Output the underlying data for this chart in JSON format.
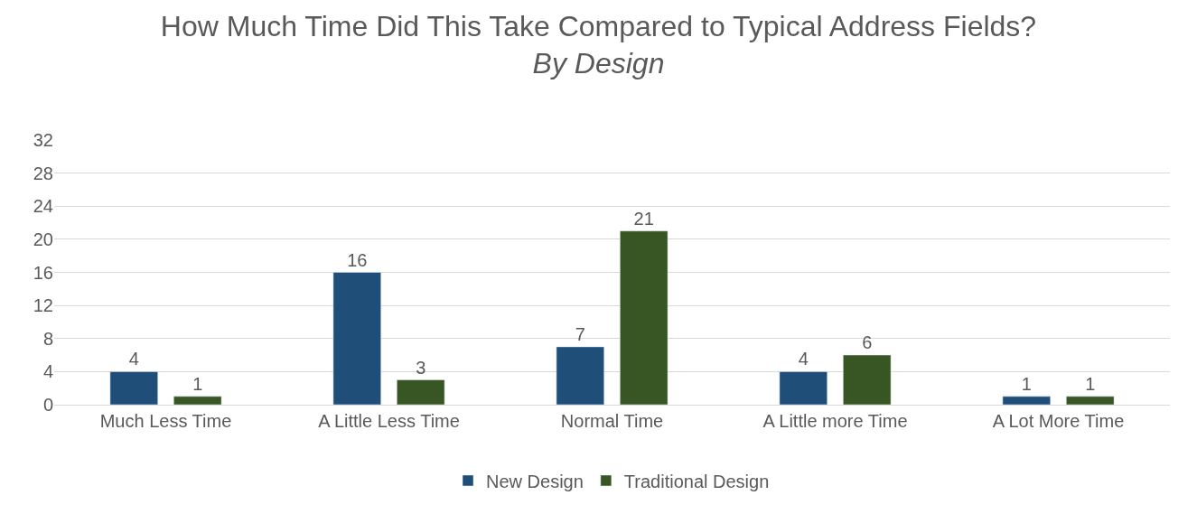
{
  "chart_data": {
    "type": "bar",
    "title": "How Much Time Did This Take Compared to Typical Address Fields?",
    "subtitle": "By Design",
    "categories": [
      "Much Less Time",
      "A Little Less Time",
      "Normal Time",
      "A Little more Time",
      "A Lot More Time"
    ],
    "series": [
      {
        "name": "New Design",
        "color": "#1f4e79",
        "values": [
          4,
          16,
          7,
          4,
          1
        ]
      },
      {
        "name": "Traditional Design",
        "color": "#375623",
        "values": [
          1,
          3,
          21,
          6,
          1
        ]
      }
    ],
    "ylim": [
      0,
      32
    ],
    "yticks": [
      0,
      4,
      8,
      12,
      16,
      20,
      24,
      28,
      32
    ],
    "grid": "y",
    "legend": "bottom",
    "data_labels": true
  }
}
